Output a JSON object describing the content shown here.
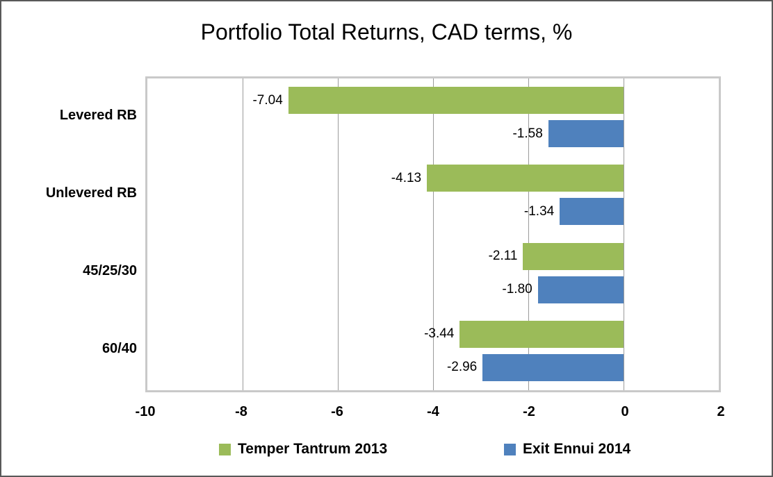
{
  "chart_data": {
    "type": "bar",
    "orientation": "horizontal",
    "title": "Portfolio Total Returns, CAD terms, %",
    "categories": [
      "Levered RB",
      "Unlevered RB",
      "45/25/30",
      "60/40"
    ],
    "series": [
      {
        "name": "Temper Tantrum 2013",
        "color": "#9BBB59",
        "values": [
          -7.04,
          -4.13,
          -2.11,
          -3.44
        ]
      },
      {
        "name": "Exit Ennui 2014",
        "color": "#4F81BD",
        "values": [
          -1.58,
          -1.34,
          -1.8,
          -2.96
        ]
      }
    ],
    "xlim": [
      -10,
      2
    ],
    "xticks": [
      -10,
      -8,
      -6,
      -4,
      -2,
      0,
      2
    ],
    "grid": true,
    "legend_position": "bottom",
    "data_labels": "outside end, 2 decimals",
    "colors": {
      "plot_border": "#C9C9C9",
      "gridline": "#9B9B9B",
      "outer_border": "#595959",
      "text": "#000000"
    }
  }
}
